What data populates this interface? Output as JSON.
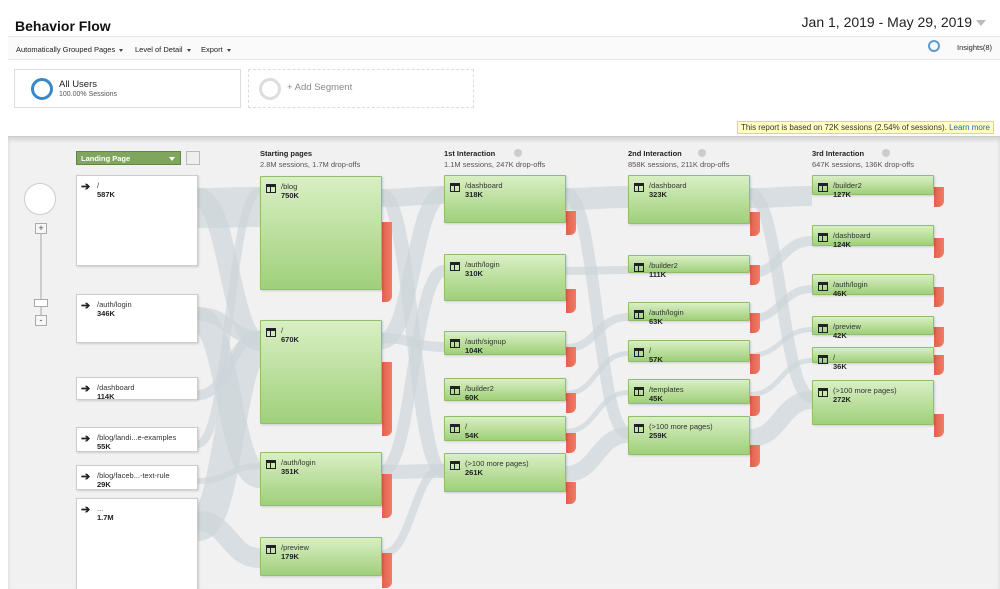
{
  "header": {
    "title": "Behavior Flow",
    "date_range": "Jan 1, 2019 - May 29, 2019"
  },
  "toolbar": {
    "menus": [
      "Automatically Grouped Pages",
      "Level of Detail",
      "Export"
    ],
    "insights": "Insights(8)"
  },
  "segments": {
    "active": {
      "name": "All Users",
      "share": "100.00% Sessions"
    },
    "add": "+ Add Segment"
  },
  "notice": {
    "text": "This report is based on 72K sessions (2.54% of sessions).",
    "link": "Learn more"
  },
  "flow": {
    "dimension": "Landing Page",
    "landing_pages": [
      {
        "label": "/",
        "value": "587K"
      },
      {
        "label": "/auth/login",
        "value": "346K"
      },
      {
        "label": "/dashboard",
        "value": "114K"
      },
      {
        "label": "/blog/landi...e-examples",
        "value": "55K"
      },
      {
        "label": "/blog/faceb...-text-rule",
        "value": "29K"
      },
      {
        "label": "...",
        "value": "1.7M"
      }
    ],
    "columns": [
      {
        "title": "Starting pages",
        "subtitle": "2.8M sessions, 1.7M drop-offs",
        "nodes": [
          {
            "label": "/blog",
            "value": "750K"
          },
          {
            "label": "/",
            "value": "670K"
          },
          {
            "label": "/auth/login",
            "value": "351K"
          },
          {
            "label": "/preview",
            "value": "179K"
          }
        ]
      },
      {
        "title": "1st Interaction",
        "subtitle": "1.1M sessions, 247K drop-offs",
        "nodes": [
          {
            "label": "/dashboard",
            "value": "318K"
          },
          {
            "label": "/auth/login",
            "value": "310K"
          },
          {
            "label": "/auth/signup",
            "value": "104K"
          },
          {
            "label": "/builder2",
            "value": "60K"
          },
          {
            "label": "/",
            "value": "54K"
          },
          {
            "label": "(>100 more pages)",
            "value": "261K"
          }
        ]
      },
      {
        "title": "2nd Interaction",
        "subtitle": "858K sessions, 211K drop-offs",
        "nodes": [
          {
            "label": "/dashboard",
            "value": "323K"
          },
          {
            "label": "/builder2",
            "value": "111K"
          },
          {
            "label": "/auth/login",
            "value": "63K"
          },
          {
            "label": "/",
            "value": "57K"
          },
          {
            "label": "/templates",
            "value": "45K"
          },
          {
            "label": "(>100 more pages)",
            "value": "259K"
          }
        ]
      },
      {
        "title": "3rd Interaction",
        "subtitle": "647K sessions, 136K drop-offs",
        "nodes": [
          {
            "label": "/builder2",
            "value": "127K"
          },
          {
            "label": "/dashboard",
            "value": "124K"
          },
          {
            "label": "/auth/login",
            "value": "46K"
          },
          {
            "label": "/preview",
            "value": "42K"
          },
          {
            "label": "/",
            "value": "36K"
          },
          {
            "label": "(>100 more pages)",
            "value": "272K"
          }
        ]
      }
    ]
  }
}
